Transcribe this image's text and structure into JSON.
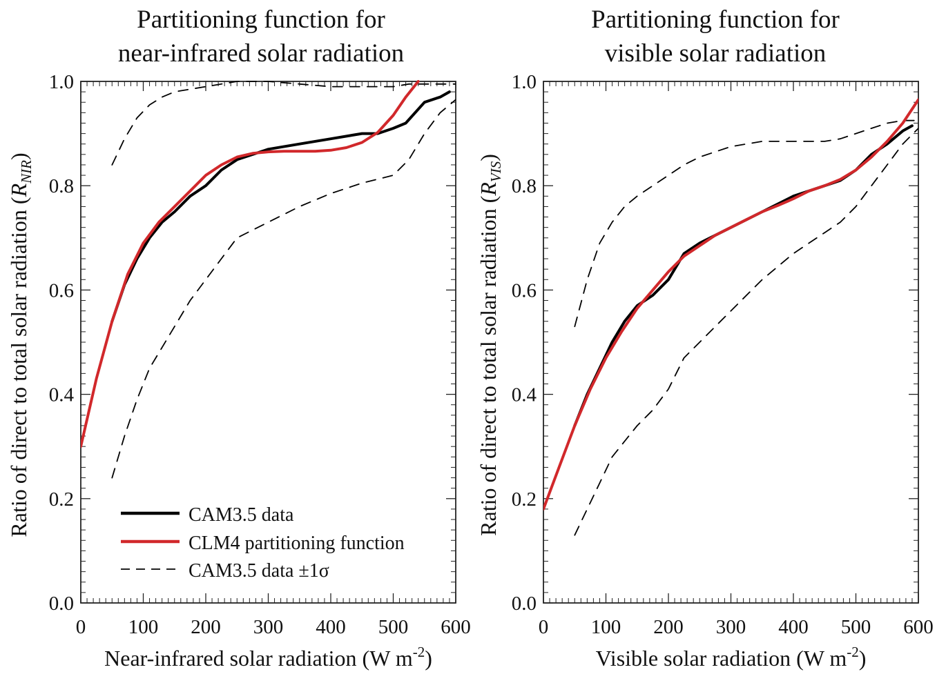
{
  "chart_data": [
    {
      "type": "line",
      "title_lines": [
        "Partitioning function for",
        "near-infrared solar radiation"
      ],
      "xlabel": "Near-infrared solar radiation (W m",
      "xlabel_sup": "-2",
      "xlabel_end": ")",
      "ylabel": "Ratio of direct to total solar radiation (",
      "ylabel_var": "R",
      "ylabel_sub": "NIR",
      "ylabel_end": ")",
      "xlim": [
        0,
        600
      ],
      "ylim": [
        0,
        1
      ],
      "xticks": [
        "0",
        "100",
        "200",
        "300",
        "400",
        "500",
        "600"
      ],
      "yticks": [
        "0.0",
        "0.2",
        "0.4",
        "0.6",
        "0.8",
        "1.0"
      ],
      "grid": false,
      "legend_position": "bottom-left",
      "series": [
        {
          "name": "CAM3.5 data",
          "style": "solid",
          "color": "#000000",
          "x": [
            50,
            70,
            90,
            110,
            130,
            150,
            175,
            200,
            225,
            250,
            300,
            350,
            400,
            450,
            475,
            500,
            520,
            550,
            575,
            590
          ],
          "y": [
            0.54,
            0.61,
            0.66,
            0.7,
            0.73,
            0.75,
            0.78,
            0.8,
            0.83,
            0.85,
            0.87,
            0.88,
            0.89,
            0.9,
            0.9,
            0.91,
            0.92,
            0.96,
            0.97,
            0.98
          ]
        },
        {
          "name": "CLM4 partitioning function",
          "style": "solid",
          "color": "#d1282b",
          "x": [
            0,
            25,
            50,
            75,
            100,
            125,
            150,
            175,
            200,
            225,
            250,
            275,
            300,
            325,
            350,
            375,
            400,
            425,
            450,
            475,
            500,
            520,
            540
          ],
          "y": [
            0.3,
            0.43,
            0.54,
            0.63,
            0.69,
            0.73,
            0.76,
            0.79,
            0.82,
            0.84,
            0.855,
            0.862,
            0.865,
            0.866,
            0.866,
            0.866,
            0.868,
            0.873,
            0.883,
            0.902,
            0.935,
            0.97,
            1.0
          ]
        },
        {
          "name": "CAM3.5 data ±1σ",
          "style": "dashed",
          "color": "#000000",
          "x": [
            50,
            70,
            90,
            110,
            130,
            150,
            175,
            200,
            250,
            300,
            350,
            400,
            450,
            500,
            525,
            550,
            575,
            600
          ],
          "y": [
            0.84,
            0.89,
            0.93,
            0.955,
            0.97,
            0.98,
            0.985,
            0.99,
            1.0,
            1.0,
            0.995,
            0.99,
            0.99,
            0.99,
            0.995,
            0.995,
            0.995,
            0.995
          ]
        },
        {
          "style": "dashed",
          "color": "#000000",
          "x": [
            50,
            70,
            90,
            110,
            130,
            150,
            175,
            200,
            225,
            250,
            300,
            350,
            400,
            450,
            500,
            525,
            550,
            575,
            600
          ],
          "y": [
            0.24,
            0.32,
            0.39,
            0.45,
            0.49,
            0.53,
            0.58,
            0.62,
            0.66,
            0.7,
            0.73,
            0.76,
            0.785,
            0.805,
            0.82,
            0.85,
            0.9,
            0.94,
            0.965
          ]
        }
      ],
      "legend": [
        {
          "label": "CAM3.5 data",
          "style": "solid",
          "color": "#000000"
        },
        {
          "label": "CLM4 partitioning function",
          "style": "solid",
          "color": "#d1282b"
        },
        {
          "label": "CAM3.5 data ±1σ",
          "style": "dashed",
          "color": "#000000"
        }
      ]
    },
    {
      "type": "line",
      "title_lines": [
        "Partitioning function for",
        "visible solar radiation"
      ],
      "xlabel": "Visible solar radiation (W m",
      "xlabel_sup": "-2",
      "xlabel_end": ")",
      "ylabel": "Ratio of direct to total solar radiation (",
      "ylabel_var": "R",
      "ylabel_sub": "VIS",
      "ylabel_end": ")",
      "xlim": [
        0,
        600
      ],
      "ylim": [
        0,
        1
      ],
      "xticks": [
        "0",
        "100",
        "200",
        "300",
        "400",
        "500",
        "600"
      ],
      "yticks": [
        "0.0",
        "0.2",
        "0.4",
        "0.6",
        "0.8",
        "1.0"
      ],
      "grid": false,
      "series": [
        {
          "name": "CAM3.5 data",
          "style": "solid",
          "color": "#000000",
          "x": [
            50,
            70,
            90,
            110,
            130,
            150,
            175,
            200,
            225,
            250,
            300,
            350,
            400,
            450,
            475,
            500,
            525,
            550,
            575,
            590
          ],
          "y": [
            0.34,
            0.4,
            0.45,
            0.5,
            0.54,
            0.57,
            0.59,
            0.62,
            0.67,
            0.69,
            0.72,
            0.75,
            0.78,
            0.8,
            0.81,
            0.83,
            0.86,
            0.88,
            0.905,
            0.915
          ]
        },
        {
          "name": "CLM4 partitioning function",
          "style": "solid",
          "color": "#d1282b",
          "x": [
            0,
            25,
            50,
            75,
            100,
            125,
            150,
            175,
            200,
            225,
            250,
            275,
            300,
            325,
            350,
            375,
            400,
            425,
            450,
            475,
            500,
            525,
            550,
            575,
            600
          ],
          "y": [
            0.18,
            0.26,
            0.34,
            0.41,
            0.47,
            0.52,
            0.565,
            0.6,
            0.635,
            0.665,
            0.685,
            0.705,
            0.72,
            0.735,
            0.75,
            0.762,
            0.775,
            0.79,
            0.8,
            0.812,
            0.83,
            0.855,
            0.885,
            0.92,
            0.965
          ]
        },
        {
          "name": "CAM3.5 data ±1σ",
          "style": "dashed",
          "color": "#000000",
          "x": [
            50,
            70,
            90,
            110,
            130,
            150,
            175,
            200,
            225,
            250,
            300,
            350,
            400,
            450,
            475,
            500,
            525,
            550,
            575,
            600
          ],
          "y": [
            0.53,
            0.62,
            0.69,
            0.73,
            0.76,
            0.78,
            0.8,
            0.82,
            0.84,
            0.855,
            0.875,
            0.885,
            0.885,
            0.885,
            0.89,
            0.9,
            0.91,
            0.92,
            0.925,
            0.925
          ]
        },
        {
          "style": "dashed",
          "color": "#000000",
          "x": [
            50,
            70,
            90,
            110,
            130,
            150,
            175,
            200,
            225,
            250,
            300,
            350,
            400,
            450,
            475,
            500,
            525,
            550,
            575,
            600
          ],
          "y": [
            0.13,
            0.18,
            0.23,
            0.28,
            0.31,
            0.34,
            0.37,
            0.41,
            0.47,
            0.5,
            0.56,
            0.62,
            0.67,
            0.71,
            0.73,
            0.76,
            0.8,
            0.84,
            0.88,
            0.91
          ]
        }
      ]
    }
  ]
}
